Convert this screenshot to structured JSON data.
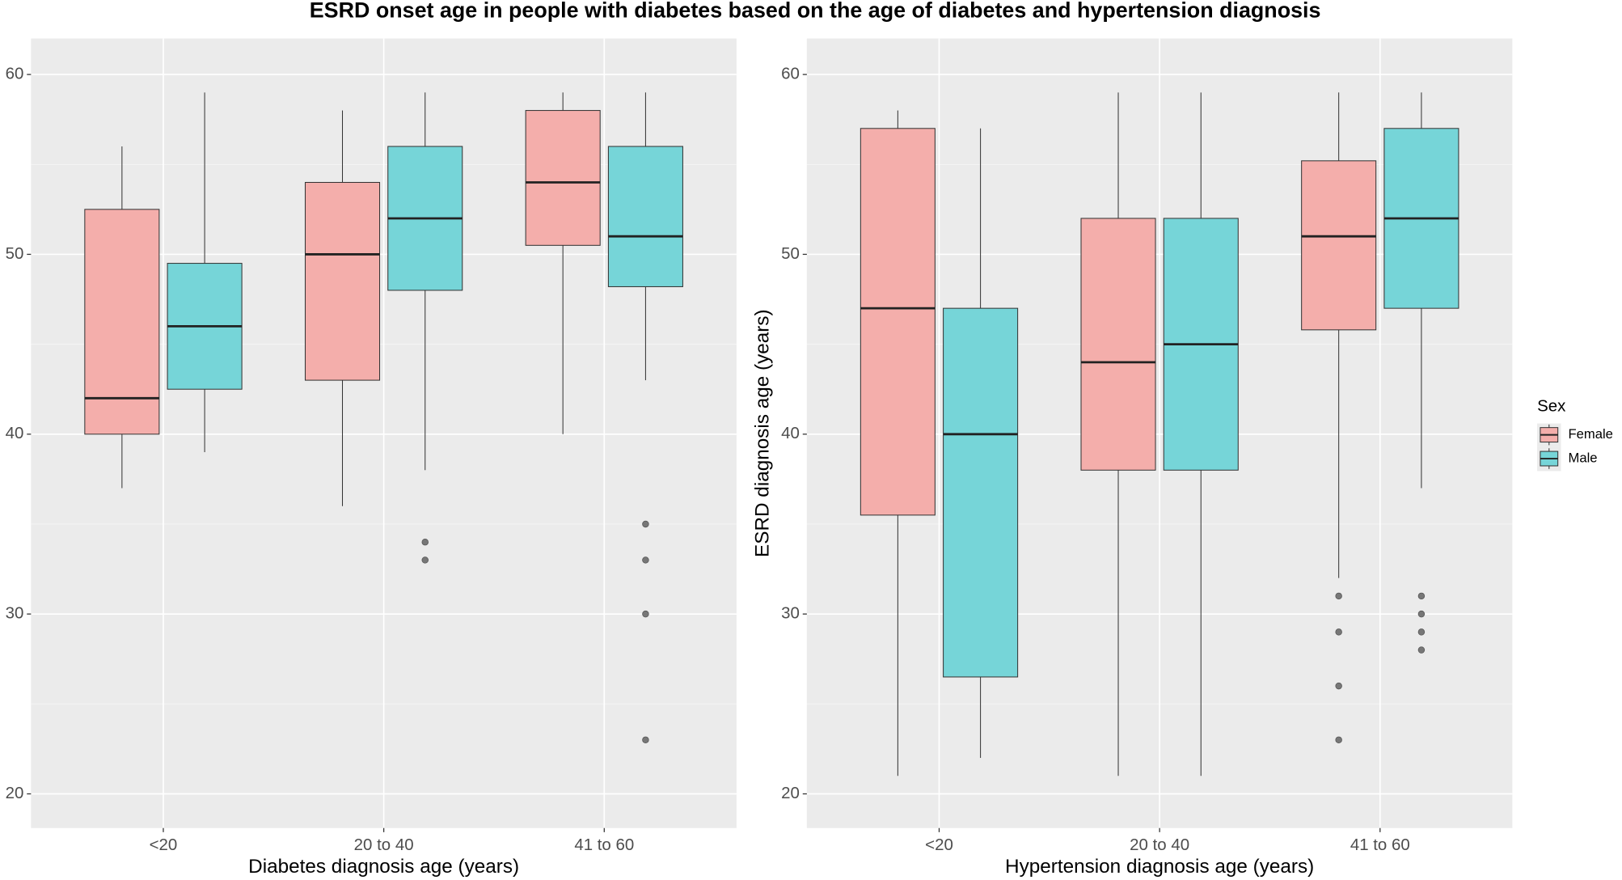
{
  "title": "ESRD onset age in people with diabetes based on the age of diabetes and hypertension diagnosis",
  "chart_data": [
    {
      "type": "box",
      "x_label": "Diabetes diagnosis age (years)",
      "categories": [
        "<20",
        "20 to 40",
        "41 to 60"
      ],
      "ylim": [
        18.1,
        62
      ],
      "yticks": [
        20,
        30,
        40,
        50,
        60
      ],
      "grid": true,
      "minor_grid": true,
      "series": [
        {
          "name": "Female",
          "color": "#f4aeab",
          "values": [
            {
              "min": 37,
              "q1": 40,
              "median": 42,
              "q3": 52.5,
              "max": 56,
              "outliers": []
            },
            {
              "min": 36,
              "q1": 43,
              "median": 50,
              "q3": 54,
              "max": 58,
              "outliers": []
            },
            {
              "min": 40,
              "q1": 50.5,
              "median": 54,
              "q3": 58,
              "max": 59,
              "outliers": []
            }
          ]
        },
        {
          "name": "Male",
          "color": "#76d5d8",
          "values": [
            {
              "min": 39,
              "q1": 42.5,
              "median": 46,
              "q3": 49.5,
              "max": 59,
              "outliers": []
            },
            {
              "min": 38,
              "q1": 48,
              "median": 52,
              "q3": 56,
              "max": 59,
              "outliers": [
                34,
                33
              ]
            },
            {
              "min": 43,
              "q1": 48.2,
              "median": 51,
              "q3": 56,
              "max": 59,
              "outliers": [
                35,
                33,
                30,
                23
              ]
            }
          ]
        }
      ]
    },
    {
      "type": "box",
      "x_label": "Hypertension diagnosis age (years)",
      "y_label": "ESRD diagnosis age (years)",
      "categories": [
        "<20",
        "20 to 40",
        "41 to 60"
      ],
      "ylim": [
        18.1,
        62
      ],
      "yticks": [
        20,
        30,
        40,
        50,
        60
      ],
      "grid": true,
      "minor_grid": true,
      "legend": "right",
      "legend_title": "Sex",
      "series": [
        {
          "name": "Female",
          "color": "#f4aeab",
          "values": [
            {
              "min": 21,
              "q1": 35.5,
              "median": 47,
              "q3": 57,
              "max": 58,
              "outliers": []
            },
            {
              "min": 21,
              "q1": 38,
              "median": 44,
              "q3": 52,
              "max": 59,
              "outliers": []
            },
            {
              "min": 32,
              "q1": 45.8,
              "median": 51,
              "q3": 55.2,
              "max": 59,
              "outliers": [
                31,
                29,
                26,
                23
              ]
            }
          ]
        },
        {
          "name": "Male",
          "color": "#76d5d8",
          "values": [
            {
              "min": 22,
              "q1": 26.5,
              "median": 40,
              "q3": 47,
              "max": 57,
              "outliers": []
            },
            {
              "min": 21,
              "q1": 38,
              "median": 45,
              "q3": 52,
              "max": 59,
              "outliers": []
            },
            {
              "min": 37,
              "q1": 47,
              "median": 52,
              "q3": 57,
              "max": 59,
              "outliers": [
                31,
                30,
                29,
                28
              ]
            }
          ]
        }
      ]
    }
  ]
}
